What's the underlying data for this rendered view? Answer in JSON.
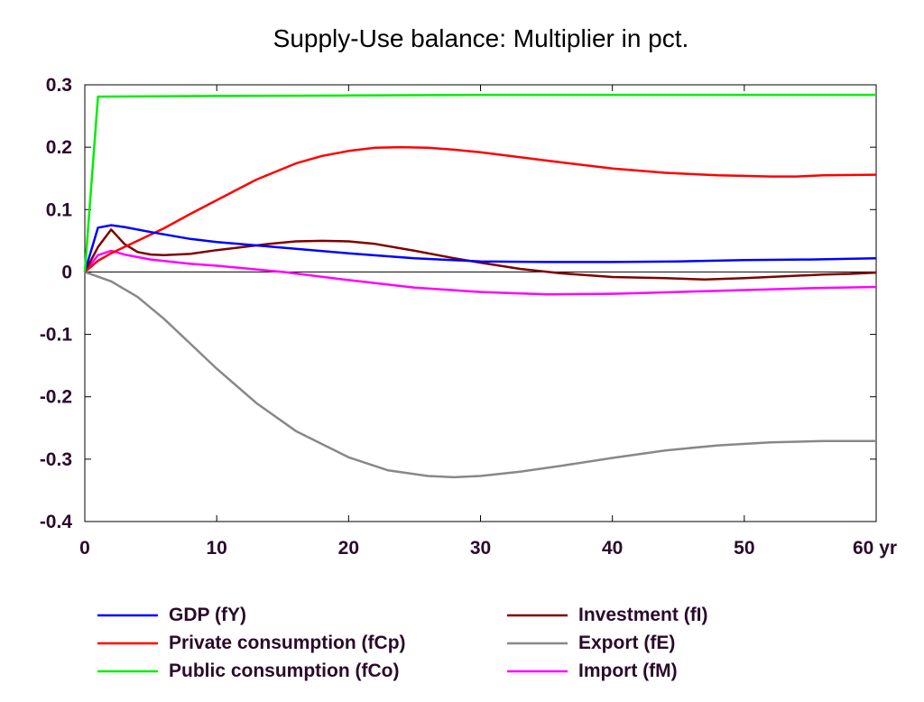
{
  "chart_data": {
    "type": "line",
    "title": "Supply-Use balance: Multiplier in pct.",
    "xlabel": "",
    "ylabel": "",
    "x_unit_label": "yr",
    "xlim": [
      0,
      60
    ],
    "ylim": [
      -0.4,
      0.3
    ],
    "x_ticks": [
      0,
      10,
      20,
      30,
      40,
      50,
      60
    ],
    "x_tick_labels": [
      "0",
      "10",
      "20",
      "30",
      "40",
      "50",
      "60 yr"
    ],
    "y_ticks": [
      0.3,
      0.2,
      0.1,
      0,
      -0.1,
      -0.2,
      -0.3,
      -0.4
    ],
    "y_tick_labels": [
      "0.3",
      "0.2",
      "0.1",
      "0",
      "-0.1",
      "-0.2",
      "-0.3",
      "-0.4"
    ],
    "grid": false,
    "zero_line": true,
    "legend_position": "bottom",
    "series": [
      {
        "name": "GDP (fY)",
        "color": "#0000ff",
        "x": [
          0,
          1,
          2,
          3,
          5,
          8,
          10,
          15,
          20,
          25,
          30,
          35,
          40,
          45,
          50,
          55,
          60
        ],
        "y": [
          0,
          0.071,
          0.075,
          0.072,
          0.064,
          0.053,
          0.048,
          0.039,
          0.03,
          0.022,
          0.017,
          0.016,
          0.016,
          0.017,
          0.019,
          0.02,
          0.022
        ]
      },
      {
        "name": "Private consumption (fCp)",
        "color": "#ff0000",
        "x": [
          0,
          1,
          2,
          4,
          6,
          8,
          10,
          13,
          16,
          18,
          20,
          22,
          24,
          26,
          28,
          30,
          33,
          36,
          40,
          44,
          48,
          52,
          54,
          56,
          60
        ],
        "y": [
          0,
          0.018,
          0.03,
          0.05,
          0.07,
          0.093,
          0.115,
          0.148,
          0.174,
          0.186,
          0.194,
          0.199,
          0.2,
          0.199,
          0.196,
          0.192,
          0.184,
          0.176,
          0.166,
          0.159,
          0.155,
          0.153,
          0.153,
          0.155,
          0.156
        ]
      },
      {
        "name": "Public consumption (fCo)",
        "color": "#00ee00",
        "x": [
          0,
          1,
          10,
          20,
          30,
          40,
          50,
          60
        ],
        "y": [
          0,
          0.281,
          0.282,
          0.283,
          0.284,
          0.284,
          0.284,
          0.284
        ]
      },
      {
        "name": "Investment (fI)",
        "color": "#800000",
        "x": [
          0,
          1,
          2,
          3,
          4,
          5,
          6,
          8,
          10,
          12,
          14,
          16,
          18,
          20,
          22,
          25,
          28,
          30,
          33,
          36,
          40,
          44,
          47,
          50,
          53,
          56,
          58,
          60
        ],
        "y": [
          0,
          0.04,
          0.068,
          0.045,
          0.032,
          0.028,
          0.027,
          0.029,
          0.035,
          0.04,
          0.045,
          0.049,
          0.05,
          0.049,
          0.045,
          0.034,
          0.022,
          0.015,
          0.005,
          -0.002,
          -0.008,
          -0.01,
          -0.012,
          -0.01,
          -0.007,
          -0.004,
          -0.003,
          -0.001
        ]
      },
      {
        "name": "Export (fE)",
        "color": "#888888",
        "x": [
          0,
          2,
          4,
          6,
          8,
          10,
          13,
          16,
          20,
          23,
          26,
          28,
          30,
          33,
          36,
          40,
          44,
          48,
          52,
          56,
          60
        ],
        "y": [
          0,
          -0.015,
          -0.04,
          -0.075,
          -0.115,
          -0.155,
          -0.21,
          -0.255,
          -0.297,
          -0.318,
          -0.327,
          -0.329,
          -0.327,
          -0.32,
          -0.311,
          -0.298,
          -0.286,
          -0.278,
          -0.273,
          -0.271,
          -0.271
        ]
      },
      {
        "name": "Import (fM)",
        "color": "#ff00ff",
        "x": [
          0,
          1,
          2,
          3,
          5,
          8,
          10,
          15,
          20,
          25,
          30,
          35,
          40,
          45,
          50,
          55,
          60
        ],
        "y": [
          0,
          0.027,
          0.034,
          0.028,
          0.02,
          0.013,
          0.01,
          0.0,
          -0.013,
          -0.025,
          -0.032,
          -0.036,
          -0.035,
          -0.032,
          -0.029,
          -0.026,
          -0.024
        ]
      }
    ]
  }
}
